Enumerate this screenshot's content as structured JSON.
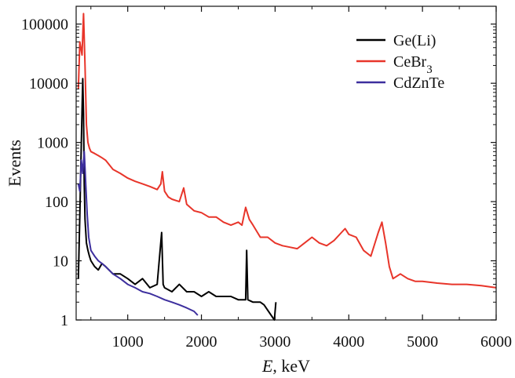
{
  "chart_data": {
    "type": "line",
    "xlabel_italic": "E",
    "xlabel_rest": ", keV",
    "ylabel": "Events",
    "xlim": [
      300,
      6000
    ],
    "ylim": [
      1,
      200000
    ],
    "yscale": "log",
    "xticks": [
      1000,
      2000,
      3000,
      4000,
      5000,
      6000
    ],
    "xtick_labels": [
      "1000",
      "2000",
      "3000",
      "4000",
      "5000",
      "6000"
    ],
    "yticks": [
      1,
      10,
      100,
      1000,
      10000,
      100000
    ],
    "ytick_labels": [
      "1",
      "10",
      "100",
      "1000",
      "10000",
      "100000"
    ],
    "grid": false,
    "legend_position": "top-right",
    "series": [
      {
        "name": "Ge(Li)",
        "legend_main": "Ge(Li)",
        "legend_sub": "",
        "color": "#000000",
        "x": [
          330,
          350,
          370,
          390,
          400,
          410,
          420,
          440,
          460,
          480,
          500,
          550,
          600,
          650,
          700,
          800,
          900,
          1000,
          1100,
          1200,
          1300,
          1400,
          1460,
          1480,
          1500,
          1600,
          1700,
          1800,
          1900,
          2000,
          2100,
          2200,
          2300,
          2400,
          2500,
          2600,
          2614,
          2630,
          2700,
          2800,
          2850,
          2990,
          3010
        ],
        "y": [
          5,
          60,
          1000,
          12000,
          3000,
          200,
          50,
          20,
          15,
          12,
          10,
          8,
          7,
          9,
          8,
          6,
          6,
          5,
          4,
          5,
          3.5,
          4,
          30,
          4,
          3.5,
          3,
          4,
          3,
          3,
          2.5,
          3,
          2.5,
          2.5,
          2.5,
          2.2,
          2.2,
          15,
          2.2,
          2,
          2,
          1.8,
          1,
          2
        ]
      },
      {
        "name": "CeBr3",
        "legend_main": "CeBr",
        "legend_sub": "3",
        "color": "#e8352a",
        "x": [
          330,
          350,
          380,
          400,
          420,
          440,
          460,
          480,
          500,
          550,
          600,
          650,
          700,
          800,
          900,
          1000,
          1100,
          1200,
          1300,
          1400,
          1450,
          1470,
          1500,
          1550,
          1600,
          1700,
          1760,
          1800,
          1900,
          2000,
          2100,
          2200,
          2300,
          2400,
          2500,
          2550,
          2600,
          2650,
          2700,
          2800,
          2900,
          3000,
          3100,
          3200,
          3300,
          3400,
          3500,
          3600,
          3700,
          3800,
          3900,
          3950,
          4000,
          4100,
          4200,
          4300,
          4400,
          4450,
          4500,
          4550,
          4600,
          4700,
          4800,
          4900,
          5000,
          5200,
          5400,
          5600,
          5800,
          6000
        ],
        "y": [
          8000,
          50000,
          30000,
          150000,
          20000,
          2000,
          1000,
          800,
          700,
          650,
          600,
          550,
          500,
          350,
          300,
          250,
          220,
          200,
          180,
          160,
          200,
          320,
          150,
          120,
          110,
          100,
          170,
          90,
          70,
          65,
          55,
          55,
          45,
          40,
          45,
          40,
          80,
          50,
          40,
          25,
          25,
          20,
          18,
          17,
          16,
          20,
          25,
          20,
          18,
          22,
          30,
          35,
          28,
          25,
          15,
          12,
          30,
          45,
          20,
          8,
          5,
          6,
          5,
          4.5,
          4.5,
          4.2,
          4,
          4,
          3.8,
          3.5
        ]
      },
      {
        "name": "CdZnTe",
        "legend_main": "CdZnTe",
        "legend_sub": "",
        "color": "#3d2f9e",
        "x": [
          330,
          350,
          370,
          390,
          410,
          430,
          450,
          470,
          500,
          550,
          600,
          650,
          700,
          800,
          900,
          1000,
          1100,
          1200,
          1300,
          1400,
          1500,
          1600,
          1700,
          1800,
          1900,
          1950
        ],
        "y": [
          200,
          150,
          500,
          300,
          700,
          200,
          60,
          25,
          15,
          12,
          10,
          9,
          8,
          6,
          5,
          4,
          3.5,
          3,
          2.8,
          2.5,
          2.2,
          2,
          1.8,
          1.6,
          1.4,
          1.2
        ]
      }
    ]
  }
}
